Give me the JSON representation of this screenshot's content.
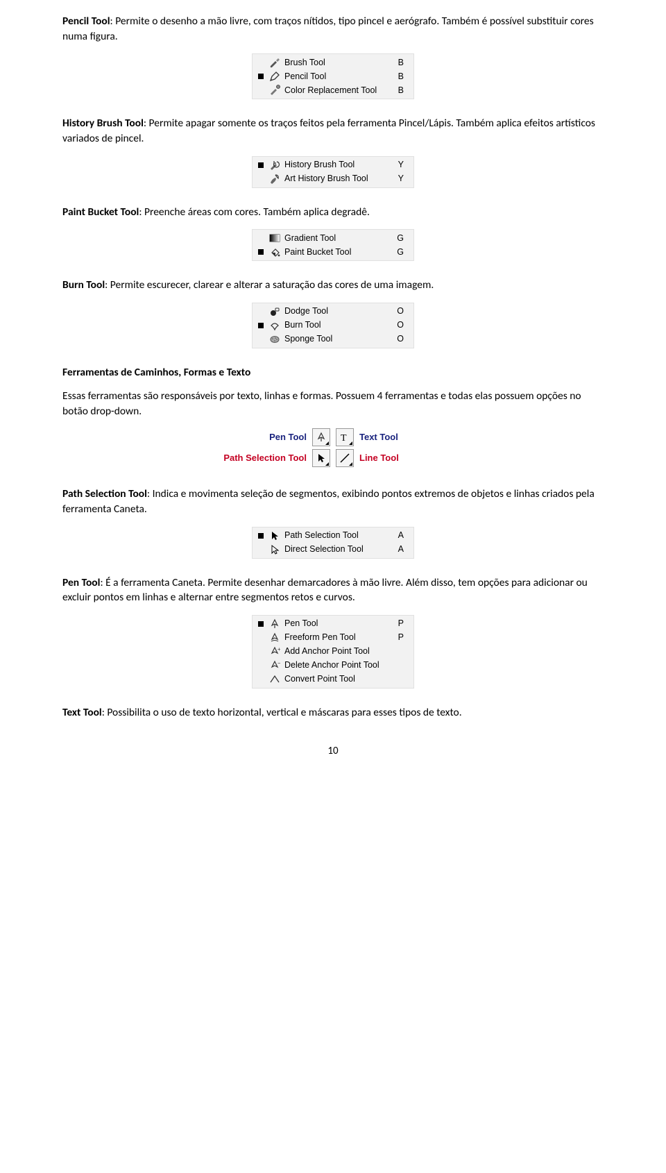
{
  "para1": {
    "title": "Pencil Tool",
    "text": ": Permite o desenho a mão livre, com traços nítidos, tipo pincel e aerógrafo. Também é possível substituir cores numa figura."
  },
  "menu_brush": {
    "items": [
      {
        "label": "Brush Tool",
        "key": "B",
        "icon": "brush",
        "selected": false
      },
      {
        "label": "Pencil Tool",
        "key": "B",
        "icon": "pencil",
        "selected": true
      },
      {
        "label": "Color Replacement Tool",
        "key": "B",
        "icon": "color-replace",
        "selected": false
      }
    ]
  },
  "para2": {
    "title": "History Brush Tool",
    "text": ": Permite apagar somente os traços feitos pela ferramenta Pincel/Lápis. Também aplica efeitos artísticos variados de pincel."
  },
  "menu_history": {
    "items": [
      {
        "label": "History Brush Tool",
        "key": "Y",
        "icon": "history-brush",
        "selected": true
      },
      {
        "label": "Art History Brush Tool",
        "key": "Y",
        "icon": "art-history",
        "selected": false
      }
    ]
  },
  "para3": {
    "title": "Paint Bucket Tool",
    "text": ": Preenche áreas com cores. Também aplica degradê."
  },
  "menu_gradient": {
    "items": [
      {
        "label": "Gradient Tool",
        "key": "G",
        "icon": "gradient",
        "selected": false
      },
      {
        "label": "Paint Bucket Tool",
        "key": "G",
        "icon": "bucket",
        "selected": true
      }
    ]
  },
  "para4": {
    "title": "Burn Tool",
    "text": ": Permite escurecer, clarear e alterar a saturação das cores de uma imagem."
  },
  "menu_burn": {
    "items": [
      {
        "label": "Dodge Tool",
        "key": "O",
        "icon": "dodge",
        "selected": false
      },
      {
        "label": "Burn Tool",
        "key": "O",
        "icon": "burn",
        "selected": true
      },
      {
        "label": "Sponge Tool",
        "key": "O",
        "icon": "sponge",
        "selected": false
      }
    ]
  },
  "heading_paths": "Ferramentas de Caminhos, Formas e Texto",
  "para_paths": "Essas ferramentas são responsáveis por texto, linhas e formas. Possuem 4 ferramentas e todas elas possuem opções no botão drop-down.",
  "quad": {
    "tl_label": "Pen Tool",
    "tr_label": "Text Tool",
    "bl_label": "Path Selection Tool",
    "br_label": "Line Tool"
  },
  "para5": {
    "title": "Path Selection Tool",
    "text": ": Indica e movimenta seleção de segmentos, exibindo pontos extremos de objetos e linhas criados pela ferramenta Caneta."
  },
  "menu_path": {
    "items": [
      {
        "label": "Path Selection Tool",
        "key": "A",
        "icon": "path-sel",
        "selected": true
      },
      {
        "label": "Direct Selection Tool",
        "key": "A",
        "icon": "direct-sel",
        "selected": false
      }
    ]
  },
  "para6": {
    "title": "Pen Tool",
    "text": ": É a ferramenta Caneta. Permite desenhar demarcadores à mão livre. Além disso, tem opções para adicionar ou excluir pontos em linhas e alternar entre segmentos retos e curvos."
  },
  "menu_pen": {
    "items": [
      {
        "label": "Pen Tool",
        "key": "P",
        "icon": "pen",
        "selected": true
      },
      {
        "label": "Freeform Pen Tool",
        "key": "P",
        "icon": "freeform-pen",
        "selected": false
      },
      {
        "label": "Add Anchor Point Tool",
        "key": "",
        "icon": "add-anchor",
        "selected": false
      },
      {
        "label": "Delete Anchor Point Tool",
        "key": "",
        "icon": "del-anchor",
        "selected": false
      },
      {
        "label": "Convert Point Tool",
        "key": "",
        "icon": "convert-pt",
        "selected": false
      }
    ]
  },
  "para7": {
    "title": "Text Tool",
    "text": ": Possibilita o uso de texto horizontal, vertical e máscaras para esses tipos de texto."
  },
  "page_number": "10"
}
